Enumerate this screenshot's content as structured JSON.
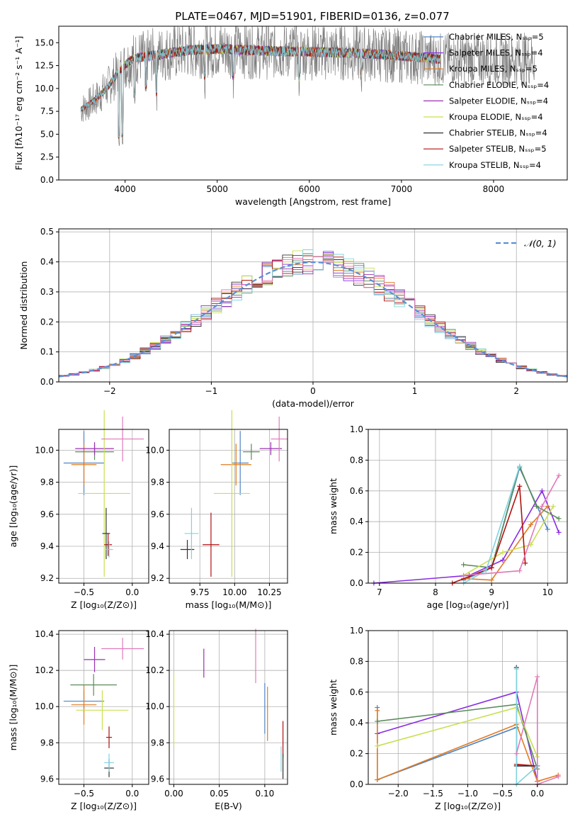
{
  "figure_title": "PLATE=0467, MJD=51901, FIBERID=0136, z=0.077",
  "colors": {
    "Chabrier MILES": "#4f84c4",
    "Salpeter MILES": "#8a2be2",
    "Kroupa MILES": "#e07b20",
    "Chabrier ELODIE": "#5a8a5a",
    "Salpeter ELODIE": "#9b30b0",
    "Kroupa ELODIE": "#c8e050",
    "Chabrier STELIB": "#333333",
    "Salpeter STELIB": "#b01010",
    "Kroupa STELIB": "#7fd3e0",
    "Pink": "#e07ab8",
    "data": "#808080",
    "normal": "#5b8fd6"
  },
  "chart_data": [
    {
      "type": "line",
      "panel": "spectrum",
      "xlabel": "wavelength [Angstrom, rest frame]",
      "ylabel": "Flux [fλ10⁻¹⁷ erg cm⁻² s⁻¹ A⁻¹]",
      "xlim": [
        3280,
        8800
      ],
      "ylim": [
        0,
        16.8
      ],
      "xticks": [
        "4000",
        "5000",
        "6000",
        "7000",
        "8000"
      ],
      "yticks": [
        "0.0",
        "2.5",
        "5.0",
        "7.5",
        "10.0",
        "12.5",
        "15.0"
      ],
      "legend_position": "right",
      "legend": [
        "Chabrier MILES, Nₛₛₚ=5",
        "Salpeter MILES, Nₛₛₚ=4",
        "Kroupa MILES, Nₛₛₚ=5",
        "Chabrier ELODIE, Nₛₛₚ=4",
        "Salpeter ELODIE, Nₛₛₚ=4",
        "Kroupa ELODIE, Nₛₛₚ=4",
        "Chabrier STELIB, Nₛₛₚ=4",
        "Salpeter STELIB, Nₛₛₚ=5",
        "Kroupa STELIB, Nₛₛₚ=4"
      ],
      "continuum": {
        "x": [
          3500,
          3600,
          3700,
          3800,
          3900,
          4000,
          4100,
          4300,
          4500,
          4700,
          5000,
          5300,
          5600,
          6000,
          6400,
          6800,
          7200,
          7400
        ],
        "y": [
          7.6,
          8.2,
          9.0,
          10.0,
          11.4,
          12.6,
          13.3,
          13.6,
          13.9,
          14.2,
          14.3,
          14.2,
          14.1,
          14.0,
          13.9,
          13.7,
          13.4,
          13.2
        ]
      }
    },
    {
      "type": "histogram",
      "panel": "residuals",
      "xlabel": "(data-model)/error",
      "ylabel": "Normed distribution",
      "xlim": [
        -2.5,
        2.5
      ],
      "ylim": [
        0,
        0.51
      ],
      "xticks": [
        "−2",
        "−1",
        "0",
        "1",
        "2"
      ],
      "yticks": [
        "0.0",
        "0.1",
        "0.2",
        "0.3",
        "0.4",
        "0.5"
      ],
      "legend": [
        "𝒩(0, 1)"
      ],
      "legend_position": "top-right",
      "bin_width": 0.1
    },
    {
      "type": "errorbar",
      "panel": "age_vs_Z",
      "xlabel": "Z [log₁₀(Z/Z⊙)]",
      "ylabel": "age  [log₁₀(age/yr)]",
      "xlim": [
        -0.76,
        0.17
      ],
      "ylim": [
        9.17,
        10.13
      ],
      "xticks": [
        "−0.5",
        "0.0"
      ],
      "yticks": [
        "9.2",
        "9.4",
        "9.6",
        "9.8",
        "10.0"
      ],
      "points": [
        {
          "series": "Chabrier MILES",
          "x": -0.5,
          "xerr": 0.21,
          "y": 9.92,
          "yerr": 0.2
        },
        {
          "series": "Kroupa MILES",
          "x": -0.5,
          "xerr": 0.13,
          "y": 9.91,
          "yerr": 0.13
        },
        {
          "series": "Chabrier ELODIE",
          "x": -0.39,
          "xerr": 0.2,
          "y": 9.99,
          "yerr": 0.05
        },
        {
          "series": "Salpeter ELODIE",
          "x": -0.39,
          "xerr": 0.2,
          "y": 10.01,
          "yerr": 0.04
        },
        {
          "series": "Kroupa ELODIE",
          "x": -0.29,
          "xerr": 0.27,
          "y": 9.73,
          "yerr": 0.52
        },
        {
          "series": "Chabrier STELIB",
          "x": -0.27,
          "xerr": 0.04,
          "y": 9.48,
          "yerr": 0.16
        },
        {
          "series": "Salpeter STELIB",
          "x": -0.25,
          "xerr": 0.04,
          "y": 9.41,
          "yerr": 0.07
        },
        {
          "series": "Kroupa STELIB",
          "x": -0.24,
          "xerr": 0.04,
          "y": 9.38,
          "yerr": 0.05
        },
        {
          "series": "Pink",
          "x": -0.1,
          "xerr": 0.22,
          "y": 10.07,
          "yerr": 0.14
        }
      ]
    },
    {
      "type": "errorbar",
      "panel": "age_vs_mass",
      "xlabel": "mass [log₁₀(M/M⊙)]",
      "xlim": [
        9.53,
        10.38
      ],
      "ylim": [
        9.17,
        10.13
      ],
      "xticks": [
        "9.75",
        "10.00",
        "10.25"
      ],
      "yticks": [
        "9.2",
        "9.4",
        "9.6",
        "9.8",
        "10.0"
      ],
      "points": [
        {
          "series": "Chabrier MILES",
          "x": 10.04,
          "xerr": 0.06,
          "y": 9.92,
          "yerr": 0.2
        },
        {
          "series": "Kroupa MILES",
          "x": 10.01,
          "xerr": 0.11,
          "y": 9.91,
          "yerr": 0.13
        },
        {
          "series": "Chabrier ELODIE",
          "x": 10.12,
          "xerr": 0.06,
          "y": 9.99,
          "yerr": 0.05
        },
        {
          "series": "Salpeter ELODIE",
          "x": 10.26,
          "xerr": 0.08,
          "y": 10.01,
          "yerr": 0.04
        },
        {
          "series": "Kroupa ELODIE",
          "x": 9.98,
          "xerr": 0.13,
          "y": 9.73,
          "yerr": 0.52
        },
        {
          "series": "Chabrier STELIB",
          "x": 9.66,
          "xerr": 0.05,
          "y": 9.38,
          "yerr": 0.06
        },
        {
          "series": "Salpeter STELIB",
          "x": 9.83,
          "xerr": 0.06,
          "y": 9.41,
          "yerr": 0.2
        },
        {
          "series": "Kroupa STELIB",
          "x": 9.69,
          "xerr": 0.05,
          "y": 9.48,
          "yerr": 0.16
        },
        {
          "series": "Pink",
          "x": 10.32,
          "xerr": 0.06,
          "y": 10.07,
          "yerr": 0.14
        }
      ]
    },
    {
      "type": "line",
      "panel": "massweight_vs_age",
      "xlabel": "age  [log₁₀(age/yr)]",
      "ylabel": "mass weight",
      "xlim": [
        6.8,
        10.35
      ],
      "ylim": [
        0,
        1
      ],
      "xticks": [
        "7",
        "8",
        "9",
        "10"
      ],
      "yticks": [
        "0.0",
        "0.2",
        "0.4",
        "0.6",
        "0.8",
        "1.0"
      ],
      "series": [
        {
          "name": "Chabrier MILES",
          "x": [
            8.5,
            9.0,
            9.5,
            10.0
          ],
          "y": [
            0.02,
            0.1,
            0.75,
            0.35
          ]
        },
        {
          "name": "Salpeter MILES",
          "x": [
            6.9,
            8.6,
            9.2,
            9.9,
            10.2
          ],
          "y": [
            0.0,
            0.05,
            0.15,
            0.6,
            0.33
          ]
        },
        {
          "name": "Kroupa MILES",
          "x": [
            8.5,
            9.0,
            9.7,
            10.0
          ],
          "y": [
            0.03,
            0.02,
            0.38,
            0.5
          ]
        },
        {
          "name": "Chabrier ELODIE",
          "x": [
            8.5,
            9.0,
            9.5,
            9.8,
            10.2
          ],
          "y": [
            0.12,
            0.1,
            0.76,
            0.5,
            0.42
          ]
        },
        {
          "name": "Kroupa ELODIE",
          "x": [
            8.5,
            9.2,
            9.7,
            10.1
          ],
          "y": [
            0.05,
            0.2,
            0.25,
            0.5
          ]
        },
        {
          "name": "Salpeter STELIB",
          "x": [
            8.3,
            9.0,
            9.5,
            9.6
          ],
          "y": [
            0.0,
            0.1,
            0.63,
            0.13
          ]
        },
        {
          "name": "Kroupa STELIB",
          "x": [
            8.5,
            8.9,
            9.5
          ],
          "y": [
            0.0,
            0.08,
            0.76
          ]
        },
        {
          "name": "Pink",
          "x": [
            8.5,
            9.5,
            9.9,
            10.2
          ],
          "y": [
            0.05,
            0.08,
            0.5,
            0.7
          ]
        }
      ]
    },
    {
      "type": "errorbar",
      "panel": "mass_vs_Z",
      "xlabel": "Z [log₁₀(Z/Z⊙)]",
      "ylabel": "mass [log₁₀(M/M⊙)]",
      "xlim": [
        -0.76,
        0.17
      ],
      "ylim": [
        9.57,
        10.42
      ],
      "xticks": [
        "−0.5",
        "0.0"
      ],
      "yticks": [
        "9.6",
        "9.8",
        "10.0",
        "10.2",
        "10.4"
      ],
      "points": [
        {
          "series": "Chabrier MILES",
          "x": -0.5,
          "xerr": 0.21,
          "y": 10.03,
          "yerr": 0.06
        },
        {
          "series": "Kroupa MILES",
          "x": -0.5,
          "xerr": 0.13,
          "y": 10.01,
          "yerr": 0.11
        },
        {
          "series": "Chabrier ELODIE",
          "x": -0.4,
          "xerr": 0.24,
          "y": 10.12,
          "yerr": 0.06
        },
        {
          "series": "Salpeter ELODIE",
          "x": -0.39,
          "xerr": 0.11,
          "y": 10.26,
          "yerr": 0.07
        },
        {
          "series": "Kroupa ELODIE",
          "x": -0.31,
          "xerr": 0.27,
          "y": 9.98,
          "yerr": 0.11
        },
        {
          "series": "Chabrier STELIB",
          "x": -0.24,
          "xerr": 0.05,
          "y": 9.66,
          "yerr": 0.05
        },
        {
          "series": "Salpeter STELIB",
          "x": -0.24,
          "xerr": 0.03,
          "y": 9.83,
          "yerr": 0.06
        },
        {
          "series": "Kroupa STELIB",
          "x": -0.24,
          "xerr": 0.05,
          "y": 9.69,
          "yerr": 0.05
        },
        {
          "series": "Pink",
          "x": -0.1,
          "xerr": 0.22,
          "y": 10.32,
          "yerr": 0.06
        }
      ]
    },
    {
      "type": "errorbar",
      "panel": "mass_vs_EBV",
      "xlabel": "E(B-V)",
      "xlim": [
        -0.005,
        0.125
      ],
      "ylim": [
        9.57,
        10.42
      ],
      "xticks": [
        "0.00",
        "0.05",
        "0.10"
      ],
      "yticks": [
        "9.6",
        "9.8",
        "10.0",
        "10.2",
        "10.4"
      ],
      "points": [
        {
          "series": "Kroupa ELODIE",
          "x": 0.0,
          "y": 9.98,
          "yerr": 0.2
        },
        {
          "series": "Salpeter ELODIE",
          "x": 0.033,
          "y": 10.24,
          "yerr": 0.08
        },
        {
          "series": "Pink",
          "x": 0.09,
          "y": 10.28,
          "yerr": 0.15
        },
        {
          "series": "Chabrier MILES",
          "x": 0.1,
          "y": 9.99,
          "yerr": 0.14
        },
        {
          "series": "Kroupa MILES",
          "x": 0.103,
          "y": 9.96,
          "yerr": 0.15
        },
        {
          "series": "Salpeter STELIB",
          "x": 0.12,
          "y": 9.82,
          "yerr": 0.1
        },
        {
          "series": "Kroupa STELIB",
          "x": 0.118,
          "y": 9.71,
          "yerr": 0.07
        },
        {
          "series": "Chabrier STELIB",
          "x": 0.12,
          "y": 9.67,
          "yerr": 0.07
        }
      ]
    },
    {
      "type": "line",
      "panel": "massweight_vs_Z",
      "xlabel": "Z [log₁₀(Z/Z⊙)]",
      "ylabel": "mass weight",
      "xlim": [
        -2.43,
        0.43
      ],
      "ylim": [
        0,
        1
      ],
      "xticks": [
        "−2.0",
        "−1.5",
        "−1.0",
        "−0.5",
        "0.0"
      ],
      "yticks": [
        "0.0",
        "0.2",
        "0.4",
        "0.6",
        "0.8",
        "1.0"
      ],
      "series": [
        {
          "name": "Chabrier MILES",
          "x": [
            -2.3,
            -2.3,
            -0.3,
            -0.3,
            0.0
          ],
          "y": [
            0.5,
            0.03,
            0.37,
            0.12,
            0.12
          ]
        },
        {
          "name": "Salpeter MILES",
          "x": [
            -2.3,
            -0.3,
            0.0
          ],
          "y": [
            0.33,
            0.6,
            0.02
          ]
        },
        {
          "name": "Kroupa MILES",
          "x": [
            -2.3,
            -2.3,
            -0.3,
            0.0,
            0.3
          ],
          "y": [
            0.48,
            0.03,
            0.39,
            0.02,
            0.06
          ]
        },
        {
          "name": "Chabrier ELODIE",
          "x": [
            -2.3,
            -0.3,
            0.0
          ],
          "y": [
            0.41,
            0.52,
            0.1
          ]
        },
        {
          "name": "Kroupa ELODIE",
          "x": [
            -2.3,
            -0.3,
            0.0
          ],
          "y": [
            0.25,
            0.5,
            0.18
          ]
        },
        {
          "name": "Chabrier STELIB",
          "x": [
            -0.3,
            -0.3,
            0.0
          ],
          "y": [
            0.76,
            0.12,
            0.12
          ]
        },
        {
          "name": "Salpeter STELIB",
          "x": [
            -0.3,
            0.0,
            0.0
          ],
          "y": [
            0.13,
            0.12,
            0.0
          ]
        },
        {
          "name": "Kroupa STELIB",
          "x": [
            -0.3,
            -0.3,
            0.0
          ],
          "y": [
            0.75,
            0.0,
            0.12
          ]
        },
        {
          "name": "Pink",
          "x": [
            -0.3,
            0.0,
            0.0,
            0.3
          ],
          "y": [
            0.2,
            0.7,
            0.0,
            0.05
          ]
        }
      ]
    }
  ]
}
